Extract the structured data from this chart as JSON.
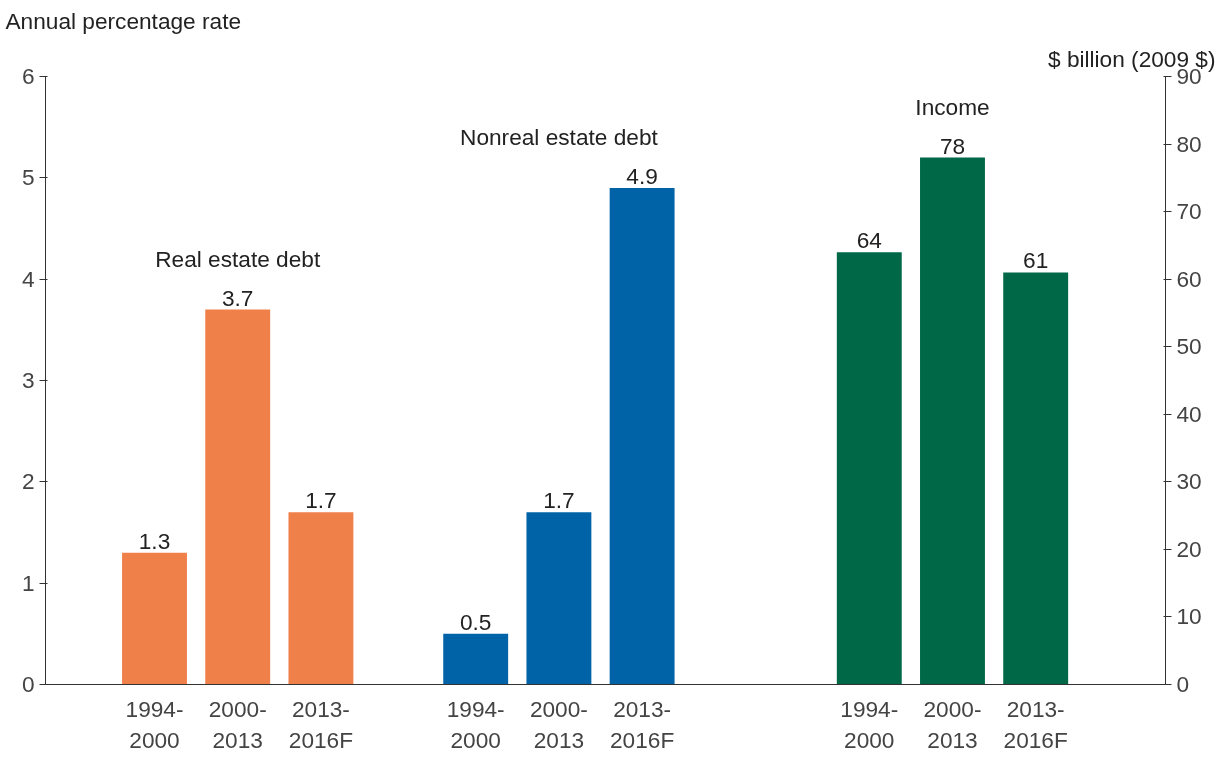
{
  "chart_data": {
    "type": "bar",
    "ylabel": "Annual percentage rate",
    "y2label": "$ billion (2009 $)",
    "categories": [
      "1994-\n2000",
      "2000-\n2013",
      "2013-\n2016F",
      "1994-\n2000",
      "2000-\n2013",
      "2013-\n2016F",
      "1994-\n2000",
      "2000-\n2013",
      "2013-\n2016F"
    ],
    "series": [
      {
        "name": "Real estate debt",
        "color": "#f0804a",
        "values": [
          1.3,
          3.7,
          1.7,
          null,
          null,
          null,
          null,
          null,
          null
        ]
      },
      {
        "name": "Nonreal estate debt",
        "color": "#0063a8",
        "values": [
          null,
          null,
          null,
          0.5,
          1.7,
          4.9,
          null,
          null,
          null
        ]
      },
      {
        "name": "Income",
        "color": "#006747",
        "axis": "y2",
        "values": [
          null,
          null,
          null,
          null,
          null,
          null,
          64,
          78,
          61
        ]
      }
    ],
    "ylim": [
      0,
      6
    ],
    "yticks": [
      0,
      1,
      2,
      3,
      4,
      5,
      6
    ],
    "y2lim": [
      0,
      90
    ],
    "y2ticks": [
      0,
      10,
      20,
      30,
      40,
      50,
      60,
      70,
      80,
      90
    ],
    "data_labels": true,
    "grid": false,
    "legend": false
  }
}
